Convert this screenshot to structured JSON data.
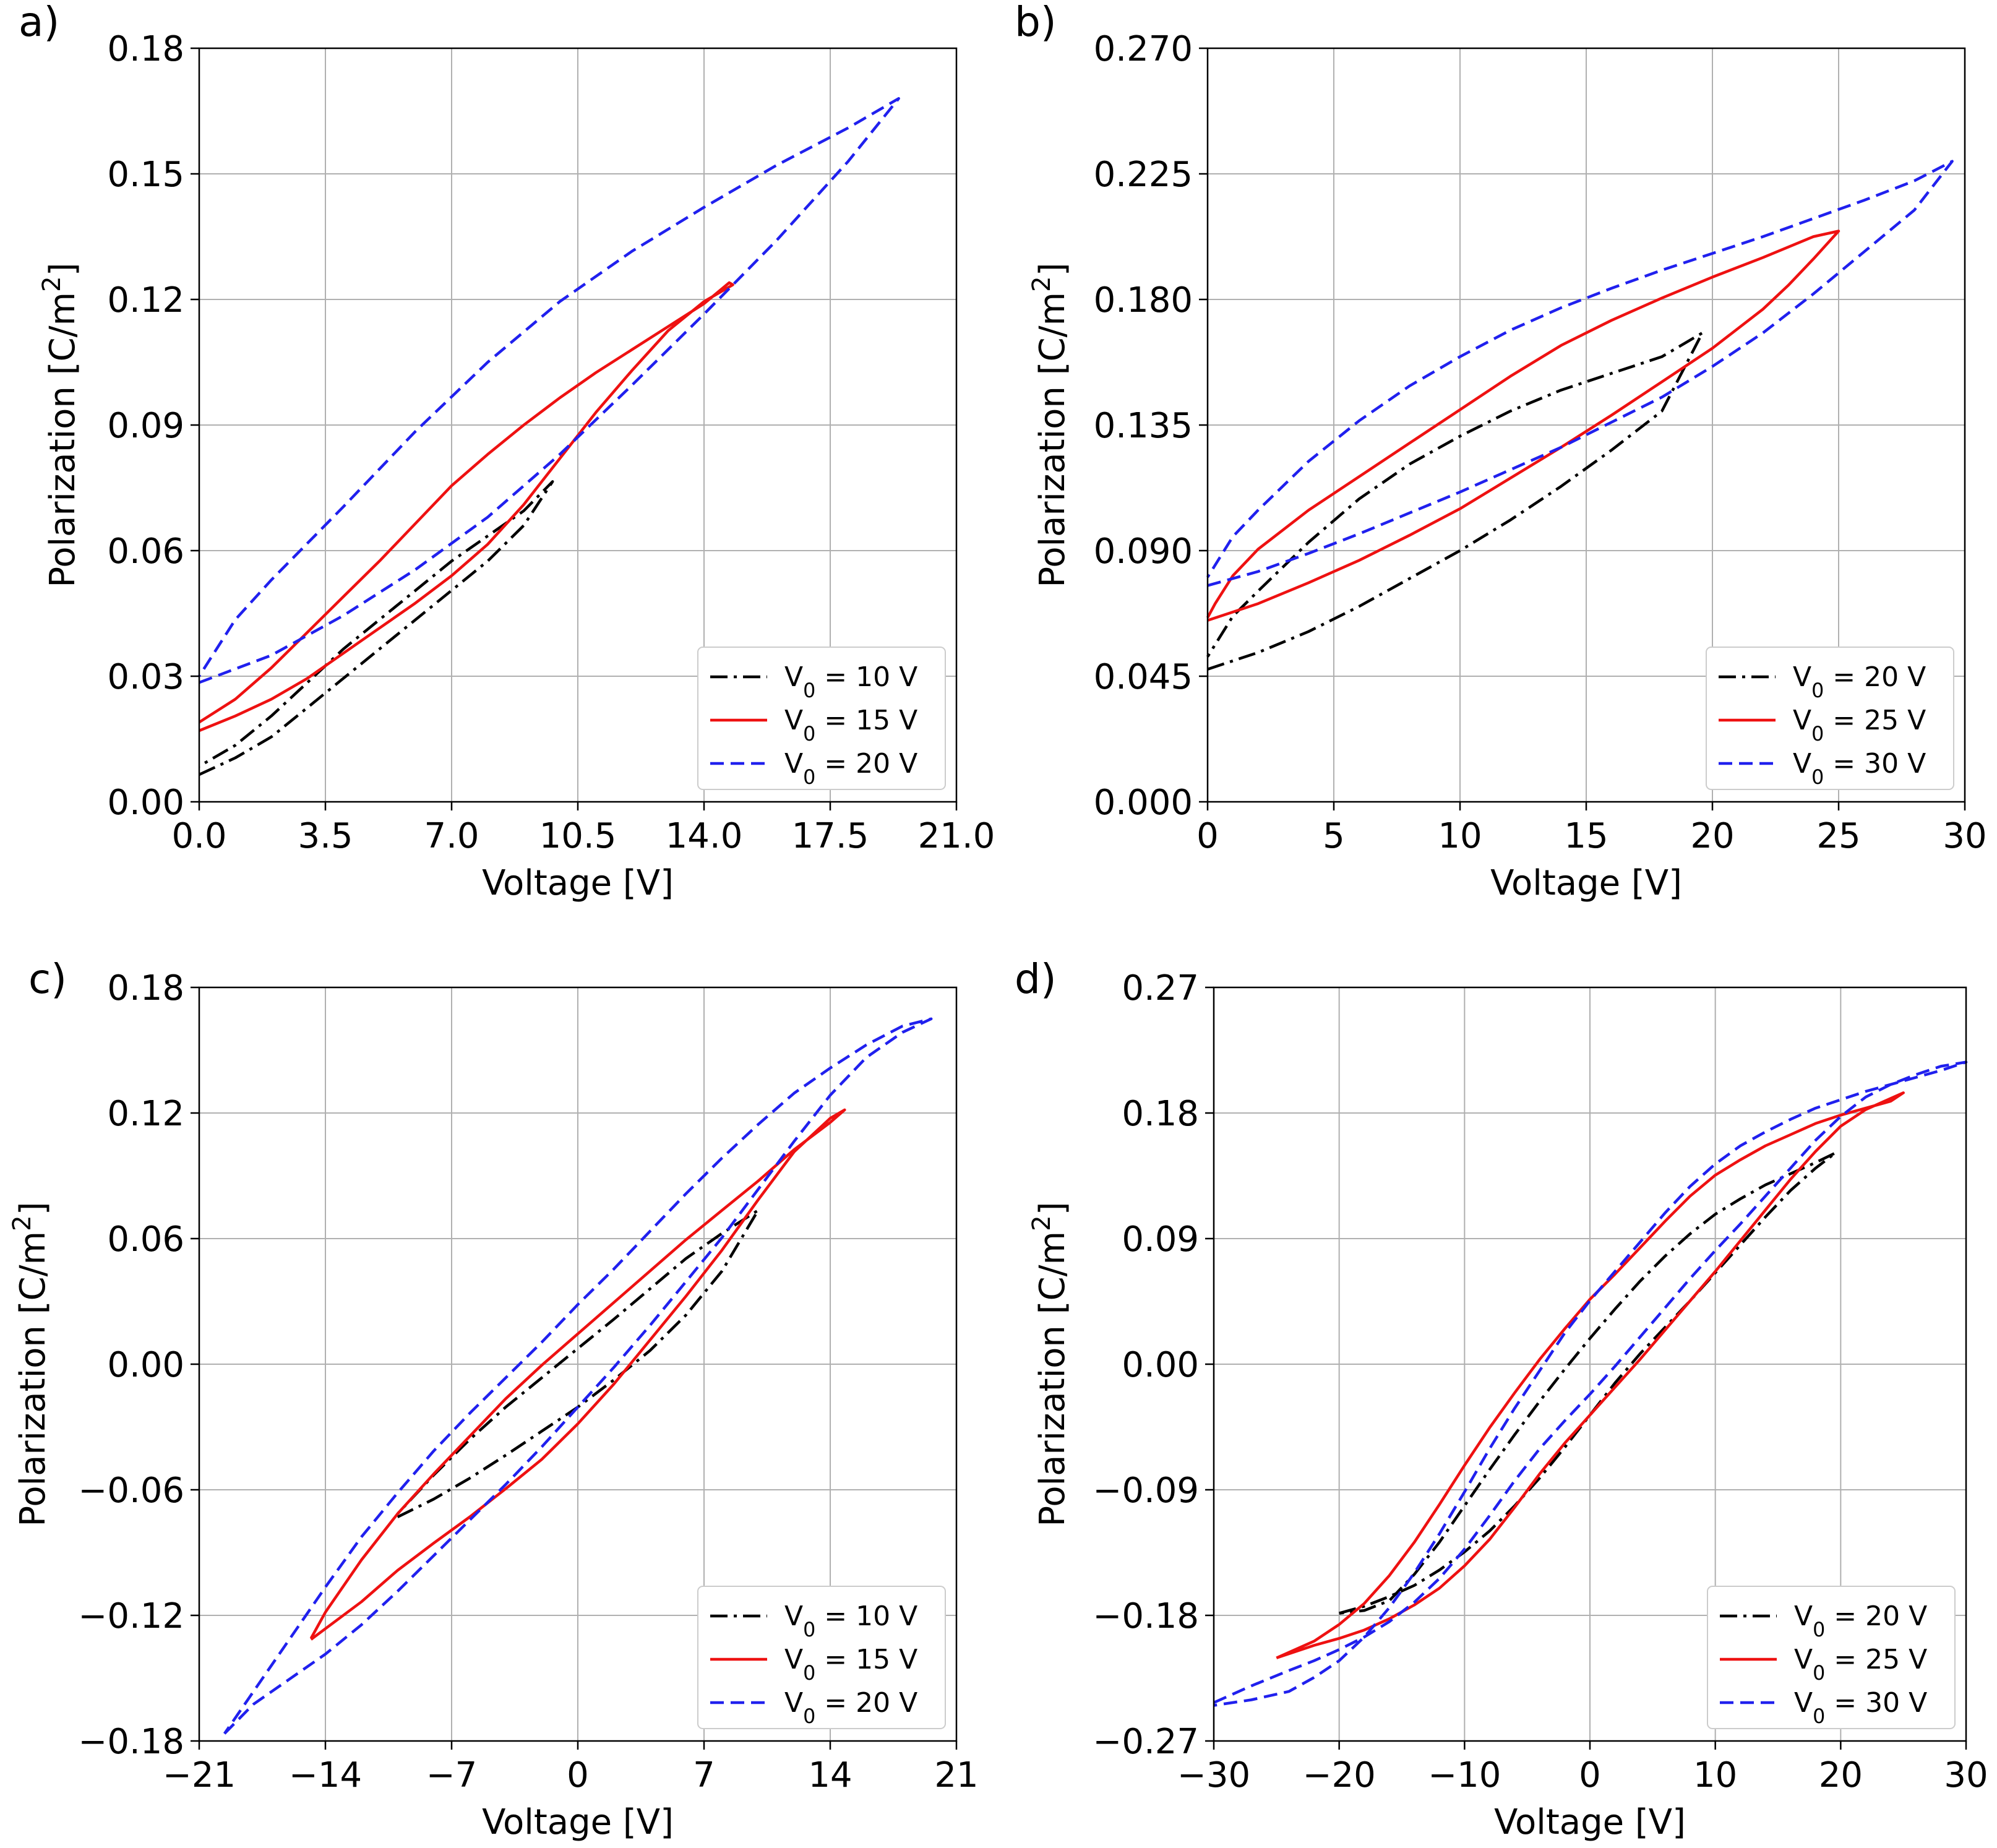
{
  "chart_data": [
    {
      "type": "line",
      "panel_label": "a)",
      "xlabel": "Voltage [V]",
      "ylabel": "Polarization [C/m2]",
      "xlim": [
        0,
        21
      ],
      "ylim": [
        0,
        0.18
      ],
      "xticks": [
        "0.0",
        "3.5",
        "7.0",
        "10.5",
        "14.0",
        "17.5",
        "21.0"
      ],
      "yticks": [
        "0.00",
        "0.03",
        "0.06",
        "0.09",
        "0.12",
        "0.15",
        "0.18"
      ],
      "grid": true,
      "legend_position": "lower right",
      "series": [
        {
          "name": "V0 = 10 V",
          "color": "#000000",
          "dash": "dashdot",
          "x": [
            0,
            1,
            2,
            3,
            4,
            5,
            6,
            7,
            8,
            9,
            9.8,
            9,
            8,
            7,
            6,
            5,
            4,
            3,
            2,
            1,
            0
          ],
          "y": [
            0.0065,
            0.0105,
            0.0155,
            0.0225,
            0.0295,
            0.0365,
            0.0435,
            0.0505,
            0.0575,
            0.066,
            0.0765,
            0.0695,
            0.0635,
            0.0575,
            0.0505,
            0.0435,
            0.0365,
            0.0285,
            0.0205,
            0.0135,
            0.0085
          ]
        },
        {
          "name": "V0 = 15 V",
          "color": "#ee1111",
          "dash": "solid",
          "x": [
            0,
            1,
            2,
            3,
            4,
            5,
            6,
            7,
            8,
            9,
            10,
            11,
            12,
            13,
            14,
            14.8,
            14.7,
            14,
            13,
            12,
            11,
            10,
            9,
            8,
            7,
            6,
            5,
            4,
            3,
            2,
            1,
            0
          ],
          "y": [
            0.017,
            0.0205,
            0.0245,
            0.0295,
            0.0355,
            0.0415,
            0.0475,
            0.054,
            0.0615,
            0.071,
            0.082,
            0.093,
            0.103,
            0.1125,
            0.1195,
            0.1235,
            0.124,
            0.119,
            0.1135,
            0.108,
            0.1025,
            0.0965,
            0.09,
            0.083,
            0.0755,
            0.0665,
            0.0575,
            0.049,
            0.0405,
            0.032,
            0.0245,
            0.019
          ]
        },
        {
          "name": "V0 = 20 V",
          "color": "#2020ee",
          "dash": "dashed",
          "x": [
            0,
            2,
            4,
            6,
            8,
            10,
            12,
            14,
            16,
            18,
            19.4,
            18,
            16,
            14,
            12,
            10,
            8,
            6,
            4,
            2,
            1,
            0
          ],
          "y": [
            0.0285,
            0.035,
            0.0445,
            0.0555,
            0.068,
            0.083,
            0.0995,
            0.1165,
            0.134,
            0.153,
            0.168,
            0.161,
            0.152,
            0.142,
            0.1315,
            0.1195,
            0.105,
            0.0885,
            0.0705,
            0.053,
            0.0435,
            0.03
          ]
        }
      ]
    },
    {
      "type": "line",
      "panel_label": "b)",
      "xlabel": "Voltage [V]",
      "ylabel": "Polarization [C/m2]",
      "xlim": [
        0,
        30
      ],
      "ylim": [
        0,
        0.27
      ],
      "xticks": [
        "0",
        "5",
        "10",
        "15",
        "20",
        "25",
        "30"
      ],
      "yticks": [
        "0.000",
        "0.045",
        "0.090",
        "0.135",
        "0.180",
        "0.225",
        "0.270"
      ],
      "grid": true,
      "legend_position": "lower right",
      "series": [
        {
          "name": "V0 = 20 V",
          "color": "#000000",
          "dash": "dashdot",
          "x": [
            0,
            2,
            4,
            6,
            8,
            10,
            12,
            14,
            16,
            18,
            19.6,
            18,
            16,
            14,
            12,
            10,
            8,
            6,
            4,
            2,
            1,
            0
          ],
          "y": [
            0.0475,
            0.0535,
            0.061,
            0.07,
            0.08,
            0.09,
            0.101,
            0.113,
            0.126,
            0.14,
            0.168,
            0.1595,
            0.1535,
            0.1475,
            0.14,
            0.131,
            0.121,
            0.1085,
            0.093,
            0.0755,
            0.0665,
            0.052
          ]
        },
        {
          "name": "V0 = 25 V",
          "color": "#ee1111",
          "dash": "solid",
          "x": [
            0,
            2,
            4,
            6,
            8,
            10,
            12,
            14,
            16,
            18,
            20,
            22,
            23,
            24,
            25,
            24,
            22,
            20,
            18,
            16,
            14,
            12,
            10,
            8,
            6,
            4,
            2,
            1,
            0.3,
            0
          ],
          "y": [
            0.065,
            0.071,
            0.0785,
            0.0865,
            0.0955,
            0.105,
            0.116,
            0.127,
            0.1385,
            0.1505,
            0.1625,
            0.1765,
            0.185,
            0.1945,
            0.2045,
            0.2025,
            0.195,
            0.188,
            0.1805,
            0.1725,
            0.1635,
            0.1525,
            0.1405,
            0.1285,
            0.1165,
            0.1045,
            0.0905,
            0.081,
            0.071,
            0.066
          ]
        },
        {
          "name": "V0 = 30 V",
          "color": "#2020ee",
          "dash": "dashed",
          "x": [
            0,
            2,
            4,
            6,
            8,
            10,
            12,
            14,
            16,
            18,
            20,
            22,
            24,
            26,
            28,
            29.5,
            28,
            26,
            24,
            22,
            20,
            18,
            16,
            14,
            12,
            10,
            8,
            6,
            4,
            2,
            1,
            0
          ],
          "y": [
            0.0775,
            0.0825,
            0.089,
            0.096,
            0.1035,
            0.111,
            0.119,
            0.127,
            0.136,
            0.145,
            0.156,
            0.168,
            0.182,
            0.197,
            0.212,
            0.2295,
            0.2225,
            0.2155,
            0.209,
            0.2025,
            0.1965,
            0.1905,
            0.184,
            0.177,
            0.169,
            0.1595,
            0.149,
            0.1365,
            0.122,
            0.1045,
            0.095,
            0.0805
          ]
        }
      ]
    },
    {
      "type": "line",
      "panel_label": "c)",
      "xlabel": "Voltage [V]",
      "ylabel": "Polarization [C/m2]",
      "xlim": [
        -21,
        21
      ],
      "ylim": [
        -0.18,
        0.18
      ],
      "xticks": [
        "−21",
        "−14",
        "−7",
        "0",
        "7",
        "14",
        "21"
      ],
      "yticks": [
        "−0.18",
        "−0.12",
        "−0.06",
        "0.00",
        "0.06",
        "0.12",
        "0.18"
      ],
      "grid": true,
      "legend_position": "lower right",
      "series": [
        {
          "name": "V0 = 10 V",
          "color": "#000000",
          "dash": "dashdot",
          "x": [
            -10,
            -8,
            -6,
            -4,
            -2,
            0,
            2,
            4,
            6,
            8,
            10,
            8,
            6,
            4,
            2,
            0,
            -2,
            -4,
            -6,
            -8,
            -10
          ],
          "y": [
            -0.073,
            -0.0645,
            -0.0545,
            -0.0435,
            -0.032,
            -0.0205,
            -0.0075,
            0.0065,
            0.0235,
            0.0445,
            0.0735,
            0.0625,
            0.0505,
            0.036,
            0.0215,
            0.0075,
            -0.0065,
            -0.0205,
            -0.036,
            -0.053,
            -0.0715
          ]
        },
        {
          "name": "V0 = 15 V",
          "color": "#ee1111",
          "dash": "solid",
          "x": [
            -14.8,
            -12,
            -10,
            -8,
            -6,
            -4,
            -2,
            0,
            2,
            4,
            6,
            8,
            10,
            12,
            14,
            14.8,
            14,
            12,
            10,
            8,
            6,
            4,
            2,
            0,
            -2,
            -4,
            -6,
            -8,
            -10,
            -12,
            -14,
            -14.8
          ],
          "y": [
            -0.1315,
            -0.1135,
            -0.0985,
            -0.0855,
            -0.073,
            -0.0595,
            -0.0455,
            -0.0285,
            -0.0095,
            0.0115,
            0.0325,
            0.0545,
            0.0785,
            0.1015,
            0.1175,
            0.1215,
            0.1155,
            0.1025,
            0.0875,
            0.0735,
            0.0595,
            0.0445,
            0.0295,
            0.0145,
            -0.0005,
            -0.0165,
            -0.0345,
            -0.0525,
            -0.0715,
            -0.0935,
            -0.1185,
            -0.131
          ]
        },
        {
          "name": "V0 = 20 V",
          "color": "#2020ee",
          "dash": "dashed",
          "x": [
            -19.6,
            -18,
            -16,
            -14,
            -12,
            -10,
            -8,
            -6,
            -4,
            -2,
            0,
            2,
            4,
            6,
            8,
            10,
            12,
            14,
            16,
            18,
            19.6,
            18,
            16,
            14,
            12,
            10,
            8,
            6,
            4,
            2,
            0,
            -2,
            -4,
            -6,
            -8,
            -10,
            -12,
            -14,
            -16,
            -18,
            -19.6
          ],
          "y": [
            -0.1765,
            -0.1625,
            -0.1505,
            -0.1385,
            -0.1245,
            -0.1085,
            -0.0915,
            -0.0745,
            -0.0575,
            -0.0395,
            -0.0205,
            -0.0015,
            0.0185,
            0.0395,
            0.0605,
            0.0835,
            0.1065,
            0.1285,
            0.1465,
            0.1585,
            0.165,
            0.1615,
            0.1525,
            0.1415,
            0.1295,
            0.1145,
            0.0985,
            0.0815,
            0.0635,
            0.0455,
            0.0285,
            0.0105,
            -0.0065,
            -0.0235,
            -0.0415,
            -0.0615,
            -0.0825,
            -0.1065,
            -0.1315,
            -0.1565,
            -0.1765
          ]
        }
      ]
    },
    {
      "type": "line",
      "panel_label": "d)",
      "xlabel": "Voltage [V]",
      "ylabel": "Polarization [C/m2]",
      "xlim": [
        -30,
        30
      ],
      "ylim": [
        -0.27,
        0.27
      ],
      "xticks": [
        "−30",
        "−20",
        "−10",
        "0",
        "10",
        "20",
        "30"
      ],
      "yticks": [
        "−0.27",
        "−0.18",
        "−0.09",
        "0.00",
        "0.09",
        "0.18",
        "0.27"
      ],
      "grid": true,
      "legend_position": "lower right",
      "series": [
        {
          "name": "V0 = 20 V",
          "color": "#000000",
          "dash": "dashdot",
          "x": [
            -20,
            -18,
            -16,
            -14,
            -12,
            -10,
            -8,
            -6,
            -4,
            -2,
            0,
            2,
            4,
            6,
            8,
            10,
            12,
            14,
            16,
            18,
            19.6,
            18,
            16,
            14,
            12,
            10,
            8,
            6,
            4,
            2,
            0,
            -2,
            -4,
            -6,
            -8,
            -10,
            -12,
            -14,
            -16,
            -18,
            -20
          ],
          "y": [
            -0.1785,
            -0.1735,
            -0.1665,
            -0.1585,
            -0.1475,
            -0.1345,
            -0.1195,
            -0.1015,
            -0.0815,
            -0.0595,
            -0.0365,
            -0.0135,
            0.0075,
            0.0265,
            0.0455,
            0.0655,
            0.0855,
            0.1055,
            0.1245,
            0.1405,
            0.1515,
            0.1445,
            0.1365,
            0.1285,
            0.1185,
            0.1075,
            0.0935,
            0.0775,
            0.0595,
            0.0395,
            0.0185,
            -0.0035,
            -0.0265,
            -0.0505,
            -0.0755,
            -0.1015,
            -0.1275,
            -0.1505,
            -0.1695,
            -0.1765,
            -0.1785
          ]
        },
        {
          "name": "V0 = 25 V",
          "color": "#ee1111",
          "dash": "solid",
          "x": [
            -25,
            -22,
            -20,
            -18,
            -16,
            -14,
            -12,
            -10,
            -8,
            -6,
            -4,
            -2,
            0,
            2,
            4,
            6,
            8,
            10,
            12,
            14,
            16,
            18,
            20,
            22,
            24,
            25,
            24,
            22,
            20,
            18,
            16,
            14,
            12,
            10,
            8,
            6,
            4,
            2,
            0,
            -2,
            -4,
            -6,
            -8,
            -10,
            -12,
            -14,
            -16,
            -18,
            -20,
            -22,
            -25
          ],
          "y": [
            -0.2105,
            -0.2015,
            -0.1965,
            -0.1905,
            -0.1825,
            -0.1725,
            -0.1605,
            -0.1445,
            -0.1255,
            -0.1025,
            -0.0785,
            -0.0565,
            -0.0365,
            -0.0165,
            0.0035,
            0.0245,
            0.0455,
            0.0665,
            0.0885,
            0.1105,
            0.1325,
            0.1525,
            0.1705,
            0.1825,
            0.1905,
            0.1945,
            0.1885,
            0.1835,
            0.1785,
            0.1725,
            0.1645,
            0.1565,
            0.1465,
            0.1355,
            0.1205,
            0.1025,
            0.0835,
            0.0645,
            0.0465,
            0.0255,
            0.0035,
            -0.0205,
            -0.0455,
            -0.0725,
            -0.1005,
            -0.1275,
            -0.1515,
            -0.1715,
            -0.1865,
            -0.1985,
            -0.2105
          ]
        },
        {
          "name": "V0 = 30 V",
          "color": "#2020ee",
          "dash": "dashed",
          "x": [
            -30,
            -27,
            -24,
            -22,
            -20,
            -18,
            -16,
            -14,
            -12,
            -10,
            -8,
            -6,
            -4,
            -2,
            0,
            2,
            4,
            6,
            8,
            10,
            12,
            14,
            16,
            18,
            20,
            22,
            24,
            26,
            28,
            30,
            28,
            26,
            24,
            22,
            20,
            18,
            16,
            14,
            12,
            10,
            8,
            6,
            4,
            2,
            0,
            -2,
            -4,
            -6,
            -8,
            -10,
            -12,
            -14,
            -16,
            -18,
            -20,
            -22,
            -24,
            -27,
            -30
          ],
          "y": [
            -0.2425,
            -0.2305,
            -0.2195,
            -0.2125,
            -0.2045,
            -0.1955,
            -0.1845,
            -0.1705,
            -0.1535,
            -0.1325,
            -0.1085,
            -0.0835,
            -0.0605,
            -0.0405,
            -0.0215,
            -0.0015,
            0.0195,
            0.0405,
            0.0615,
            0.0815,
            0.1005,
            0.1205,
            0.1405,
            0.1605,
            0.1775,
            0.1915,
            0.2005,
            0.2075,
            0.2135,
            0.2165,
            0.2105,
            0.2055,
            0.2005,
            0.1955,
            0.1895,
            0.1835,
            0.1755,
            0.1665,
            0.1565,
            0.1435,
            0.1275,
            0.1085,
            0.0875,
            0.0665,
            0.0455,
            0.0225,
            -0.0045,
            -0.0315,
            -0.0605,
            -0.0915,
            -0.1215,
            -0.1495,
            -0.1745,
            -0.1955,
            -0.2125,
            -0.2245,
            -0.2345,
            -0.2405,
            -0.2445
          ]
        }
      ]
    }
  ]
}
